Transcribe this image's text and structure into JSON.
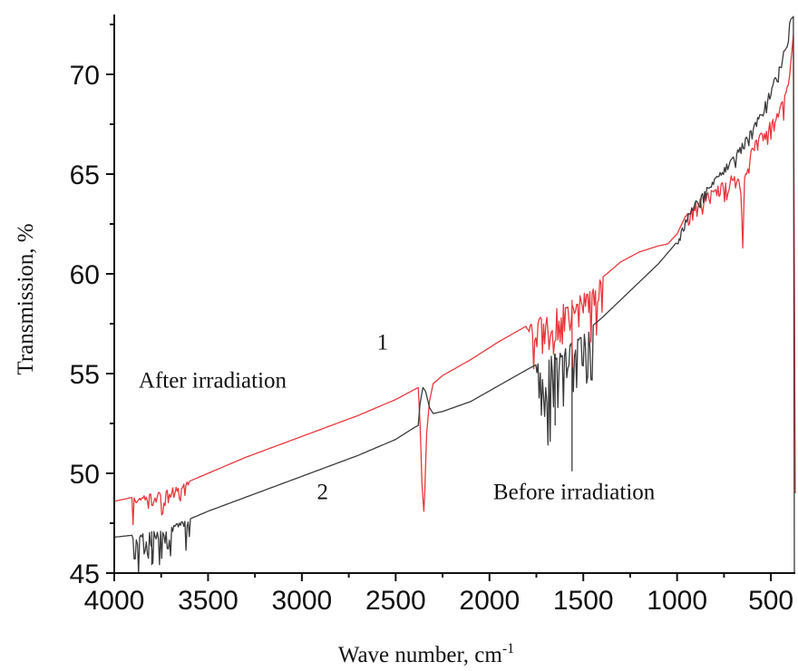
{
  "chart_data": {
    "type": "line",
    "xlabel": "Wave number, cm",
    "xlabel_superscript": "-1",
    "ylabel": "Transmission, %",
    "xlim": [
      4000,
      370
    ],
    "ylim": [
      45,
      73
    ],
    "x_reversed": true,
    "grid": false,
    "x_ticks": [
      4000,
      3500,
      3000,
      2500,
      2000,
      1500,
      1000,
      500
    ],
    "y_ticks": [
      45,
      50,
      55,
      60,
      65,
      70
    ],
    "series": [
      {
        "name": "1",
        "color": "#e8383d",
        "points": [
          [
            4000,
            48.6
          ],
          [
            3900,
            48.8
          ],
          [
            3800,
            49.0
          ],
          [
            3700,
            49.3
          ],
          [
            3600,
            49.6
          ],
          [
            3500,
            50.0
          ],
          [
            3300,
            50.8
          ],
          [
            3100,
            51.5
          ],
          [
            2900,
            52.2
          ],
          [
            2700,
            52.9
          ],
          [
            2500,
            53.7
          ],
          [
            2400,
            54.2
          ],
          [
            2380,
            54.3
          ],
          [
            2370,
            52.5
          ],
          [
            2360,
            49.5
          ],
          [
            2350,
            48.1
          ],
          [
            2345,
            49.0
          ],
          [
            2335,
            52.0
          ],
          [
            2320,
            53.6
          ],
          [
            2300,
            54.5
          ],
          [
            2250,
            54.9
          ],
          [
            2100,
            55.7
          ],
          [
            1950,
            56.6
          ],
          [
            1800,
            57.4
          ],
          [
            1700,
            58.0
          ],
          [
            1600,
            58.5
          ],
          [
            1500,
            59.0
          ],
          [
            1400,
            59.8
          ],
          [
            1300,
            60.6
          ],
          [
            1200,
            61.1
          ],
          [
            1100,
            61.4
          ],
          [
            1050,
            61.5
          ],
          [
            1000,
            62.0
          ],
          [
            950,
            63.0
          ],
          [
            900,
            63.6
          ],
          [
            800,
            64.3
          ],
          [
            700,
            65.0
          ],
          [
            660,
            64.6
          ],
          [
            650,
            61.3
          ],
          [
            640,
            64.8
          ],
          [
            600,
            66.5
          ],
          [
            500,
            67.7
          ],
          [
            450,
            68.4
          ],
          [
            420,
            69.3
          ],
          [
            400,
            70.0
          ],
          [
            380,
            72.0
          ],
          [
            370,
            49.0
          ]
        ]
      },
      {
        "name": "2",
        "color": "#3b3b3b",
        "points": [
          [
            4000,
            46.8
          ],
          [
            3900,
            46.9
          ],
          [
            3800,
            47.1
          ],
          [
            3700,
            47.4
          ],
          [
            3600,
            47.7
          ],
          [
            3500,
            48.1
          ],
          [
            3300,
            48.8
          ],
          [
            3100,
            49.5
          ],
          [
            2900,
            50.2
          ],
          [
            2700,
            50.9
          ],
          [
            2500,
            51.7
          ],
          [
            2400,
            52.3
          ],
          [
            2380,
            52.4
          ],
          [
            2370,
            53.5
          ],
          [
            2355,
            54.3
          ],
          [
            2340,
            54.1
          ],
          [
            2320,
            53.3
          ],
          [
            2300,
            53.0
          ],
          [
            2250,
            53.1
          ],
          [
            2100,
            53.6
          ],
          [
            1950,
            54.4
          ],
          [
            1800,
            55.2
          ],
          [
            1700,
            55.7
          ],
          [
            1600,
            56.3
          ],
          [
            1500,
            57.0
          ],
          [
            1400,
            57.8
          ],
          [
            1300,
            58.7
          ],
          [
            1200,
            59.6
          ],
          [
            1100,
            60.5
          ],
          [
            1000,
            61.6
          ],
          [
            950,
            62.9
          ],
          [
            900,
            63.7
          ],
          [
            800,
            64.8
          ],
          [
            700,
            65.9
          ],
          [
            600,
            67.3
          ],
          [
            500,
            69.3
          ],
          [
            450,
            70.6
          ],
          [
            420,
            71.7
          ],
          [
            400,
            72.7
          ],
          [
            380,
            72.9
          ],
          [
            375,
            45.0
          ]
        ]
      }
    ],
    "noise_regions": [
      {
        "series": 0,
        "x_from": 3900,
        "x_to": 3600,
        "depth": 1.2
      },
      {
        "series": 1,
        "x_from": 3900,
        "x_to": 3600,
        "depth": 1.5
      },
      {
        "series": 0,
        "x_from": 1800,
        "x_to": 1400,
        "depth": 2.5
      },
      {
        "series": 1,
        "x_from": 1750,
        "x_to": 1450,
        "depth": 3.5
      },
      {
        "series": 0,
        "x_from": 950,
        "x_to": 400,
        "depth": 1.0
      },
      {
        "series": 1,
        "x_from": 1000,
        "x_to": 400,
        "depth": 0.6
      }
    ],
    "spikes": [
      {
        "series": 1,
        "x": 1560,
        "y": 50.1
      },
      {
        "series": 1,
        "x": 1650,
        "y": 52.4
      },
      {
        "series": 0,
        "x": 1560,
        "y": 55.3
      },
      {
        "series": 1,
        "x": 3800,
        "y": 45.4
      }
    ],
    "annotations": [
      {
        "text": "1",
        "x": 2600,
        "y": 56.2
      },
      {
        "text": "After irradiation",
        "x": 3870,
        "y": 54.3
      },
      {
        "text": "2",
        "x": 2920,
        "y": 48.7
      },
      {
        "text": "Before irradiation",
        "x": 1980,
        "y": 48.7
      }
    ]
  }
}
